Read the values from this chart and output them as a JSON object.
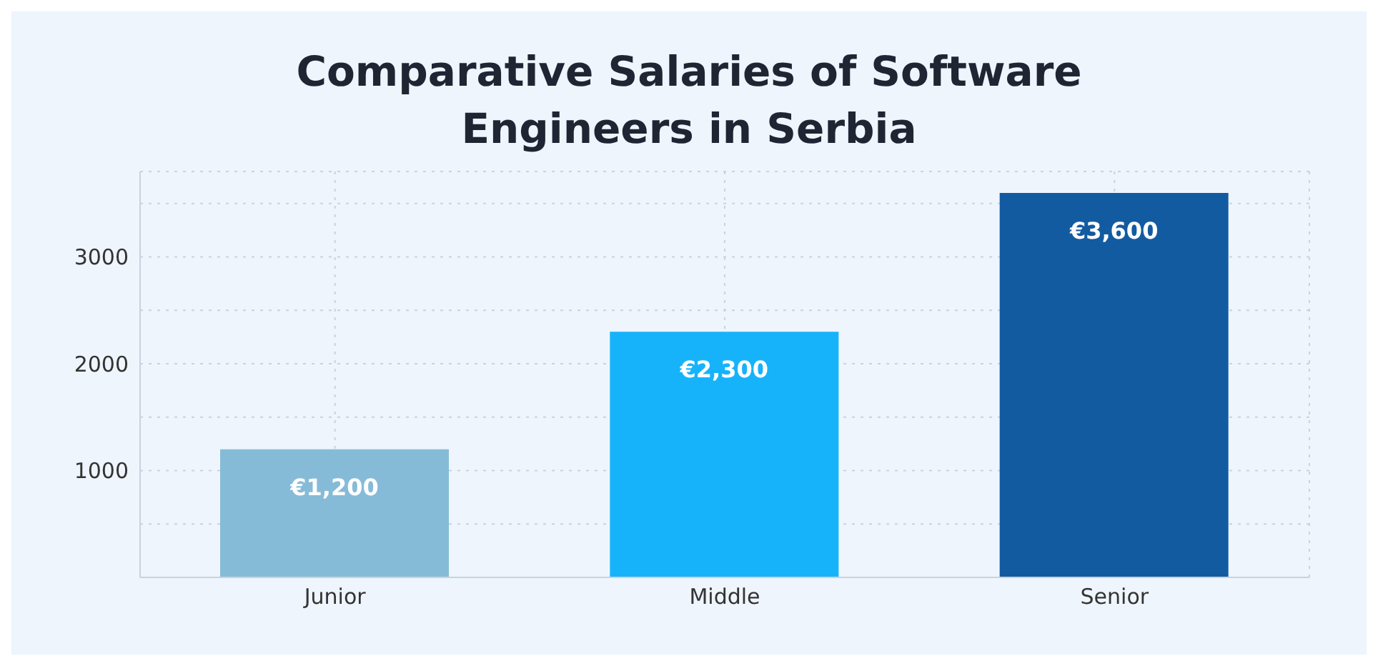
{
  "chart_data": {
    "type": "bar",
    "title": "Comparative Salaries of Software Engineers in Serbia",
    "categories": [
      "Junior",
      "Middle",
      "Senior"
    ],
    "values": [
      1200,
      2300,
      3600
    ],
    "colors": [
      "#86bbd8",
      "#16b3fb",
      "#135ba1"
    ],
    "value_labels": [
      "€1,200",
      "€2,300",
      "€3,600"
    ],
    "ylim": [
      0,
      3800
    ],
    "yticks": [
      {
        "value": 500,
        "label": null
      },
      1000,
      {
        "value": 1500,
        "label": null
      },
      2000,
      {
        "value": 2500,
        "label": null
      },
      3000,
      {
        "value": 3500,
        "label": null
      }
    ],
    "grid": true
  }
}
